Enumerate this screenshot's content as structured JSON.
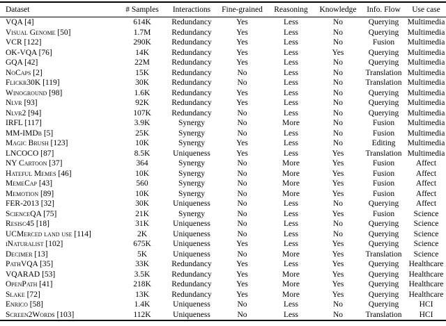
{
  "table": {
    "columns": [
      "Dataset",
      "# Samples",
      "Interactions",
      "Fine-grained",
      "Reasoning",
      "Knowledge",
      "Info. Flow",
      "Use case"
    ],
    "rows": [
      [
        "VQA [4]",
        "614K",
        "Redundancy",
        "Yes",
        "Less",
        "No",
        "Querying",
        "Multimedia"
      ],
      [
        "Visual Genome [50]",
        "1.7M",
        "Redundancy",
        "Yes",
        "Less",
        "No",
        "Querying",
        "Multimedia"
      ],
      [
        "VCR [122]",
        "290K",
        "Redundancy",
        "Yes",
        "Less",
        "No",
        "Fusion",
        "Multimedia"
      ],
      [
        "OK-VQA [76]",
        "14K",
        "Redundancy",
        "Yes",
        "Less",
        "Yes",
        "Querying",
        "Multimedia"
      ],
      [
        "GQA [42]",
        "22M",
        "Redundancy",
        "Yes",
        "Less",
        "No",
        "Querying",
        "Multimedia"
      ],
      [
        "NoCaps [2]",
        "15K",
        "Redundancy",
        "No",
        "Less",
        "No",
        "Translation",
        "Multimedia"
      ],
      [
        "Flickr30K [119]",
        "30K",
        "Redundancy",
        "No",
        "Less",
        "No",
        "Translation",
        "Multimedia"
      ],
      [
        "Winoground [98]",
        "1.6K",
        "Redundancy",
        "Yes",
        "Less",
        "No",
        "Querying",
        "Multimedia"
      ],
      [
        "Nlvr [93]",
        "92K",
        "Redundancy",
        "Yes",
        "Less",
        "No",
        "Querying",
        "Multimedia"
      ],
      [
        "Nlvr2 [94]",
        "107K",
        "Redundancy",
        "No",
        "Less",
        "No",
        "Querying",
        "Multimedia"
      ],
      [
        "IRFL [117]",
        "3.9K",
        "Synergy",
        "No",
        "More",
        "No",
        "Fusion",
        "Multimedia"
      ],
      [
        "MM-IMDb [5]",
        "25K",
        "Synergy",
        "No",
        "Less",
        "No",
        "Fusion",
        "Multimedia"
      ],
      [
        "Magic Brush [123]",
        "10K",
        "Synergy",
        "Yes",
        "Less",
        "No",
        "Editing",
        "Multimedia"
      ],
      [
        "LNCOCO [87]",
        "8.5K",
        "Uniqueness",
        "Yes",
        "Less",
        "Yes",
        "Translation",
        "Multimedia"
      ],
      [
        "NY Cartoon [37]",
        "364",
        "Synergy",
        "No",
        "More",
        "Yes",
        "Fusion",
        "Affect"
      ],
      [
        "Hateful Memes [46]",
        "10K",
        "Synergy",
        "No",
        "More",
        "Yes",
        "Fusion",
        "Affect"
      ],
      [
        "MemeCap [43]",
        "560",
        "Synergy",
        "No",
        "More",
        "Yes",
        "Fusion",
        "Affect"
      ],
      [
        "Memotion [89]",
        "10K",
        "Synergy",
        "No",
        "More",
        "Yes",
        "Fusion",
        "Affect"
      ],
      [
        "FER-2013 [32]",
        "30K",
        "Uniqueness",
        "No",
        "Less",
        "No",
        "Querying",
        "Affect"
      ],
      [
        "ScienceQA [75]",
        "21K",
        "Synergy",
        "No",
        "Less",
        "Yes",
        "Fusion",
        "Science"
      ],
      [
        "Resisc45 [18]",
        "31K",
        "Uniqueness",
        "No",
        "Less",
        "No",
        "Querying",
        "Science"
      ],
      [
        "UCMerced land use [114]",
        "2K",
        "Uniqueness",
        "No",
        "Less",
        "No",
        "Querying",
        "Science"
      ],
      [
        "iNaturalist [102]",
        "675K",
        "Uniqueness",
        "Yes",
        "Less",
        "Yes",
        "Querying",
        "Science"
      ],
      [
        "Decimer [13]",
        "5K",
        "Uniqueness",
        "No",
        "More",
        "Yes",
        "Translation",
        "Science"
      ],
      [
        "PathVQA [35]",
        "33K",
        "Redundancy",
        "Yes",
        "Less",
        "Yes",
        "Querying",
        "Healthcare"
      ],
      [
        "VQARAD [53]",
        "3.5K",
        "Redundancy",
        "Yes",
        "More",
        "Yes",
        "Querying",
        "Healthcare"
      ],
      [
        "OpenPath [41]",
        "218K",
        "Redundancy",
        "Yes",
        "More",
        "Yes",
        "Querying",
        "Healthcare"
      ],
      [
        "Slake [72]",
        "13K",
        "Redundancy",
        "Yes",
        "More",
        "Yes",
        "Querying",
        "Healthcare"
      ],
      [
        "Enrico [58]",
        "1.4K",
        "Uniqueness",
        "No",
        "Less",
        "No",
        "Querying",
        "HCI"
      ],
      [
        "Screen2Words [103]",
        "112K",
        "Uniqueness",
        "No",
        "Less",
        "No",
        "Translation",
        "HCI"
      ]
    ]
  }
}
